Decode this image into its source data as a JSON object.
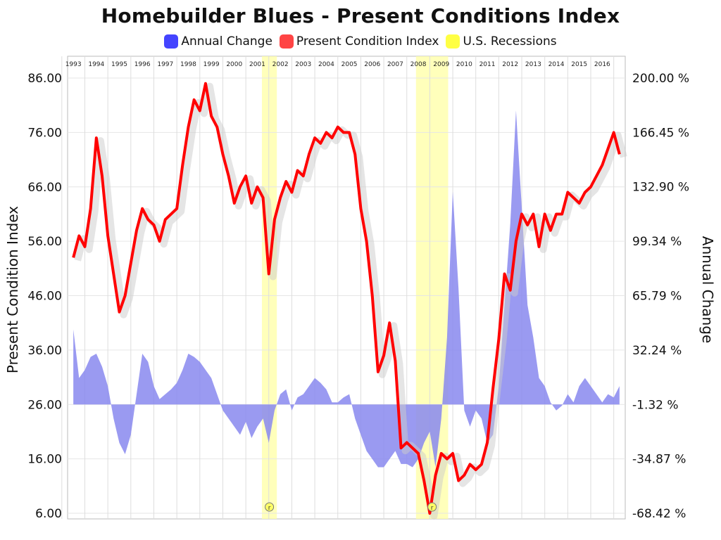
{
  "chart_data": {
    "type": "line",
    "title": "Homebuilder Blues - Present Conditions Index",
    "legend": {
      "placement": "top-center",
      "entries": [
        {
          "name": "Annual Change",
          "color": "#4444ff"
        },
        {
          "name": "Present Condition Index",
          "color": "#ff4444"
        },
        {
          "name": "U.S. Recessions",
          "color": "#ffff44"
        }
      ]
    },
    "ylabel": "Present Condition Index",
    "ylabel_right": "Annual Change",
    "ylim": [
      6,
      86
    ],
    "y_ticks": [
      "86.00",
      "76.00",
      "66.00",
      "56.00",
      "46.00",
      "36.00",
      "26.00",
      "16.00",
      "6.00"
    ],
    "ylim_right": [
      -68.42,
      200
    ],
    "y_ticks_right": [
      "200.00 %",
      "166.45 %",
      "132.90 %",
      "99.34 %",
      "65.79 %",
      "32.24 %",
      "-1.32 %",
      "-34.87 %",
      "-68.42 %"
    ],
    "xlim": [
      1992.75,
      2017.0
    ],
    "x_ticks": [
      "1993",
      "1994",
      "1995",
      "1996",
      "1997",
      "1998",
      "1999",
      "2000",
      "2001",
      "2002",
      "2003",
      "2004",
      "2005",
      "2006",
      "2007",
      "2008",
      "2009",
      "2010",
      "2011",
      "2012",
      "2013",
      "2014",
      "2015",
      "2016"
    ],
    "grid": true,
    "recessions": [
      {
        "start": 2001.2,
        "end": 2001.85,
        "marker": "r"
      },
      {
        "start": 2007.9,
        "end": 2009.3,
        "marker": "r"
      }
    ],
    "series": [
      {
        "name": "Present Condition Index",
        "color": "#ff0000",
        "kind": "line",
        "axis": "left",
        "x": [
          1993.0,
          1993.25,
          1993.5,
          1993.75,
          1994.0,
          1994.25,
          1994.5,
          1994.75,
          1995.0,
          1995.25,
          1995.5,
          1995.75,
          1996.0,
          1996.25,
          1996.5,
          1996.75,
          1997.0,
          1997.25,
          1997.5,
          1997.75,
          1998.0,
          1998.25,
          1998.5,
          1998.75,
          1999.0,
          1999.25,
          1999.5,
          1999.75,
          2000.0,
          2000.25,
          2000.5,
          2000.75,
          2001.0,
          2001.25,
          2001.5,
          2001.75,
          2002.0,
          2002.25,
          2002.5,
          2002.75,
          2003.0,
          2003.25,
          2003.5,
          2003.75,
          2004.0,
          2004.25,
          2004.5,
          2004.75,
          2005.0,
          2005.25,
          2005.5,
          2005.75,
          2006.0,
          2006.25,
          2006.5,
          2006.75,
          2007.0,
          2007.25,
          2007.5,
          2007.75,
          2008.0,
          2008.25,
          2008.5,
          2008.75,
          2009.0,
          2009.25,
          2009.5,
          2009.75,
          2010.0,
          2010.25,
          2010.5,
          2010.75,
          2011.0,
          2011.25,
          2011.5,
          2011.75,
          2012.0,
          2012.25,
          2012.5,
          2012.75,
          2013.0,
          2013.25,
          2013.5,
          2013.75,
          2014.0,
          2014.25,
          2014.5,
          2014.75,
          2015.0,
          2015.25,
          2015.5,
          2015.75,
          2016.0,
          2016.25,
          2016.5,
          2016.75
        ],
        "values": [
          53,
          57,
          55,
          62,
          75,
          68,
          57,
          50,
          43,
          46,
          52,
          58,
          62,
          60,
          59,
          56,
          60,
          61,
          62,
          70,
          77,
          82,
          80,
          85,
          79,
          77,
          72,
          68,
          63,
          66,
          68,
          63,
          66,
          64,
          50,
          60,
          64,
          67,
          65,
          69,
          68,
          72,
          75,
          74,
          76,
          75,
          77,
          76,
          76,
          72,
          62,
          56,
          46,
          32,
          35,
          41,
          34,
          18,
          19,
          18,
          17,
          12,
          6,
          13,
          17,
          16,
          17,
          12,
          13,
          15,
          14,
          15,
          19,
          29,
          38,
          50,
          47,
          56,
          61,
          59,
          61,
          55,
          61,
          58,
          61,
          61,
          65,
          64,
          63,
          65,
          66,
          68,
          70,
          73,
          76,
          72
        ]
      },
      {
        "name": "Annual Change",
        "color": "#8888ee",
        "kind": "area",
        "axis": "right",
        "x": [
          1993.0,
          1993.25,
          1993.5,
          1993.75,
          1994.0,
          1994.25,
          1994.5,
          1994.75,
          1995.0,
          1995.25,
          1995.5,
          1995.75,
          1996.0,
          1996.25,
          1996.5,
          1996.75,
          1997.0,
          1997.25,
          1997.5,
          1997.75,
          1998.0,
          1998.25,
          1998.5,
          1998.75,
          1999.0,
          1999.25,
          1999.5,
          1999.75,
          2000.0,
          2000.25,
          2000.5,
          2000.75,
          2001.0,
          2001.25,
          2001.5,
          2001.75,
          2002.0,
          2002.25,
          2002.5,
          2002.75,
          2003.0,
          2003.25,
          2003.5,
          2003.75,
          2004.0,
          2004.25,
          2004.5,
          2004.75,
          2005.0,
          2005.25,
          2005.5,
          2005.75,
          2006.0,
          2006.25,
          2006.5,
          2006.75,
          2007.0,
          2007.25,
          2007.5,
          2007.75,
          2008.0,
          2008.25,
          2008.5,
          2008.75,
          2009.0,
          2009.25,
          2009.5,
          2009.75,
          2010.0,
          2010.25,
          2010.5,
          2010.75,
          2011.0,
          2011.25,
          2011.5,
          2011.75,
          2012.0,
          2012.25,
          2012.5,
          2012.75,
          2013.0,
          2013.25,
          2013.5,
          2013.75,
          2014.0,
          2014.25,
          2014.5,
          2014.75,
          2015.0,
          2015.25,
          2015.5,
          2015.75,
          2016.0,
          2016.25,
          2016.5,
          2016.75
        ],
        "values": [
          45,
          15,
          20,
          28,
          30,
          22,
          10,
          -10,
          -25,
          -32,
          -20,
          5,
          30,
          25,
          10,
          2,
          5,
          8,
          12,
          20,
          30,
          28,
          25,
          20,
          15,
          5,
          -5,
          -10,
          -15,
          -20,
          -12,
          -22,
          -15,
          -10,
          -25,
          -5,
          5,
          8,
          -5,
          3,
          5,
          10,
          15,
          12,
          8,
          0,
          0,
          3,
          5,
          -10,
          -20,
          -30,
          -35,
          -40,
          -40,
          -35,
          -30,
          -38,
          -38,
          -40,
          -35,
          -25,
          -18,
          -40,
          -10,
          40,
          130,
          70,
          -5,
          -15,
          -5,
          -10,
          -25,
          -20,
          10,
          60,
          110,
          180,
          120,
          60,
          40,
          15,
          10,
          0,
          -5,
          -2,
          5,
          0,
          10,
          15,
          10,
          5,
          0,
          5,
          3,
          10
        ]
      }
    ]
  }
}
